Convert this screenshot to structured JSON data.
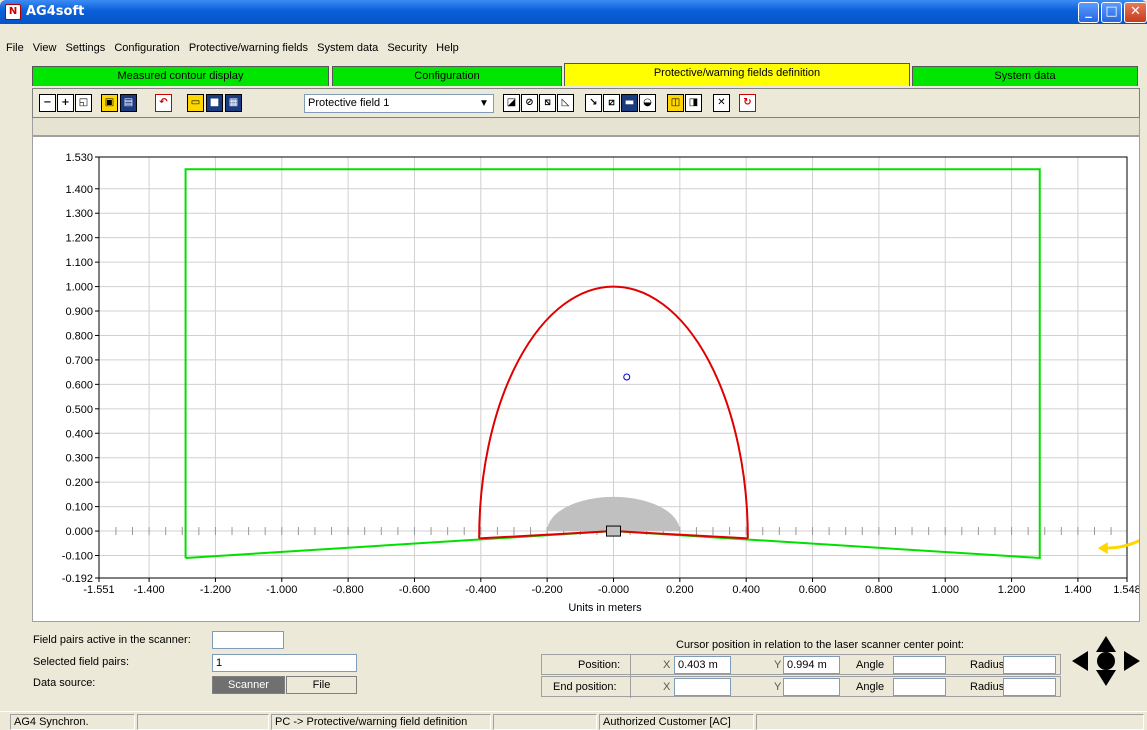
{
  "window": {
    "title": "AG4soft",
    "icon": "app-logo-icon"
  },
  "menu": [
    "File",
    "View",
    "Settings",
    "Configuration",
    "Protective/warning fields",
    "System data",
    "Security",
    "Help"
  ],
  "tabs": [
    {
      "label": "Measured contour display",
      "active": false
    },
    {
      "label": "Configuration",
      "active": false
    },
    {
      "label": "Protective/warning fields definition",
      "active": true
    },
    {
      "label": "System data",
      "active": false
    }
  ],
  "toolbar": {
    "field_select": "Protective field 1",
    "icons": [
      "zoom-out-icon",
      "zoom-in-icon",
      "zoom-fit-icon",
      "lock-icon",
      "save-device-icon",
      "undo-icon",
      "open-file-icon",
      "save-file-icon",
      "print-icon",
      "field-type-icon",
      "draw-circle-icon",
      "draw-line-icon",
      "draw-angle-icon",
      "edit-point-icon",
      "edit-segment-icon",
      "edit-region-icon",
      "edit-contour-icon",
      "copy-field-icon",
      "mirror-field-icon",
      "delete-icon",
      "reset-icon"
    ]
  },
  "chart_data": {
    "type": "line",
    "xlabel": "Units in meters",
    "xlim": [
      -1.551,
      1.548
    ],
    "ylim": [
      -0.192,
      1.53
    ],
    "x_ticks": [
      "-1.551",
      "-1.400",
      "-1.200",
      "-1.000",
      "-0.800",
      "-0.600",
      "-0.400",
      "-0.200",
      "-0.000",
      "0.200",
      "0.400",
      "0.600",
      "0.800",
      "1.000",
      "1.200",
      "1.400",
      "1.548"
    ],
    "x_tick_values": [
      -1.551,
      -1.4,
      -1.2,
      -1.0,
      -0.8,
      -0.6,
      -0.4,
      -0.2,
      0.0,
      0.2,
      0.4,
      0.6,
      0.8,
      1.0,
      1.2,
      1.4,
      1.548
    ],
    "y_ticks": [
      "1.530",
      "1.400",
      "1.300",
      "1.200",
      "1.100",
      "1.000",
      "0.900",
      "0.800",
      "0.700",
      "0.600",
      "0.500",
      "0.400",
      "0.300",
      "0.200",
      "0.100",
      "0.000",
      "-0.100",
      "-0.192"
    ],
    "y_tick_values": [
      1.53,
      1.4,
      1.3,
      1.2,
      1.1,
      1.0,
      0.9,
      0.8,
      0.7,
      0.6,
      0.5,
      0.4,
      0.3,
      0.2,
      0.1,
      0.0,
      -0.1,
      -0.192
    ],
    "grid": true,
    "warning_field": {
      "color": "#00e000",
      "points": [
        [
          -1.29,
          -0.11
        ],
        [
          -1.29,
          1.48
        ],
        [
          1.285,
          1.48
        ],
        [
          1.285,
          -0.11
        ],
        [
          0.0,
          0.0
        ],
        [
          -1.29,
          -0.11
        ]
      ]
    },
    "protective_field": {
      "color": "#e00000",
      "center": [
        0.0,
        -0.03
      ],
      "half_width": 0.405,
      "top": 1.0,
      "base_points": [
        [
          -0.405,
          -0.03
        ],
        [
          0.0,
          0.0
        ],
        [
          0.405,
          -0.03
        ]
      ]
    },
    "scanner_area": {
      "color": "#c0c0c0",
      "center": [
        0.0,
        0.0
      ],
      "radius": 0.2
    },
    "scanner": {
      "x": 0.0,
      "y": 0.0
    },
    "cursor_marker": {
      "x": 0.04,
      "y": 0.63,
      "color": "#0000cc"
    },
    "direction_arrow": {
      "color": "#ffd700",
      "x": 1.46,
      "y": -0.07
    }
  },
  "bottom": {
    "field_pairs_active_label": "Field pairs active in the scanner:",
    "field_pairs_active_value": "",
    "selected_field_pairs_label": "Selected field pairs:",
    "selected_field_pairs_value": "1",
    "data_source_label": "Data source:",
    "scanner_button": "Scanner",
    "file_button": "File",
    "cursor_title": "Cursor position in relation to the laser scanner center point:",
    "position_label": "Position:",
    "end_position_label": "End position:",
    "x_label": "X",
    "y_label": "Y",
    "angle_label": "Angle",
    "radius_label": "Radius",
    "position_x": "0.403 m",
    "position_y": "0.994 m",
    "position_angle": "",
    "position_radius": "",
    "end_x": "",
    "end_y": "",
    "end_angle": "",
    "end_radius": ""
  },
  "status": [
    "AG4 Synchron.",
    "",
    "PC -> Protective/warning field definition",
    "",
    "Authorized Customer [AC]",
    ""
  ]
}
